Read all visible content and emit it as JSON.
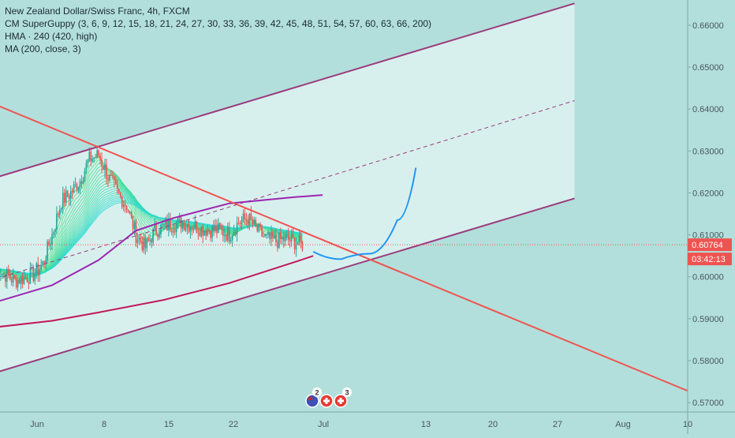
{
  "legend": {
    "title": "New Zealand Dollar/Swiss Franc, 4h, FXCM",
    "indicator_1": "CM SuperGuppy (3, 6, 9, 12, 15, 18, 21, 24, 27, 30, 33, 36, 39, 42, 45, 48, 51, 54, 57, 60, 63, 66, 200)",
    "indicator_2": "HMA · 240 (420, high)",
    "indicator_3": "MA (200, close, 3)"
  },
  "colors": {
    "background": "#b2dfdb",
    "channel_fill": "#d7f0ee",
    "channel_line": "#9b3b7d",
    "trendline": "#ef5350",
    "hma": "#9c27b0",
    "ma": "#c2185b",
    "projection": "#2196f3",
    "bull": "#26a69a",
    "bear": "#ef5350",
    "price_tag": "#ef5350"
  },
  "chart_data": {
    "type": "line",
    "symbol": "NZDCHF",
    "timeframe": "4h",
    "x_ticks": [
      "Jun",
      "8",
      "15",
      "22",
      "Jul",
      "13",
      "20",
      "27",
      "Aug",
      "10"
    ],
    "y_ticks": [
      "0.57000",
      "0.58000",
      "0.59000",
      "0.60000",
      "0.61000",
      "0.62000",
      "0.63000",
      "0.64000",
      "0.65000",
      "0.66000"
    ],
    "ylim": [
      0.5625,
      0.666
    ],
    "last_price": "0.60764",
    "countdown": "03:42:13",
    "candles_close_path": [
      [
        "2020-05-28",
        0.602
      ],
      [
        "2020-05-30",
        0.599
      ],
      [
        "2020-06-01",
        0.6005
      ],
      [
        "2020-06-02",
        0.603
      ],
      [
        "2020-06-03",
        0.61
      ],
      [
        "2020-06-04",
        0.618
      ],
      [
        "2020-06-05",
        0.62
      ],
      [
        "2020-06-06",
        0.623
      ],
      [
        "2020-06-07",
        0.628
      ],
      [
        "2020-06-08",
        0.629
      ],
      [
        "2020-06-09",
        0.624
      ],
      [
        "2020-06-10",
        0.62
      ],
      [
        "2020-06-11",
        0.617
      ],
      [
        "2020-06-12",
        0.61
      ],
      [
        "2020-06-13",
        0.607
      ],
      [
        "2020-06-14",
        0.611
      ],
      [
        "2020-06-15",
        0.612
      ],
      [
        "2020-06-17",
        0.613
      ],
      [
        "2020-06-19",
        0.6115
      ],
      [
        "2020-06-21",
        0.611
      ],
      [
        "2020-06-22",
        0.61
      ],
      [
        "2020-06-23",
        0.613
      ],
      [
        "2020-06-24",
        0.614
      ],
      [
        "2020-06-25",
        0.611
      ],
      [
        "2020-06-26",
        0.609
      ],
      [
        "2020-06-27",
        0.6085
      ],
      [
        "2020-06-28",
        0.609
      ],
      [
        "2020-06-30",
        0.6076
      ]
    ],
    "series": [
      {
        "name": "HMA · 240 (420, high)",
        "color": "#9c27b0",
        "points": [
          [
            "2020-05-28",
            0.594
          ],
          [
            "2020-06-03",
            0.598
          ],
          [
            "2020-06-08",
            0.604
          ],
          [
            "2020-06-12",
            0.611
          ],
          [
            "2020-06-16",
            0.614
          ],
          [
            "2020-06-22",
            0.6175
          ],
          [
            "2020-06-29",
            0.619
          ],
          [
            "2020-07-02",
            0.6195
          ]
        ]
      },
      {
        "name": "MA (200, close, 3)",
        "color": "#c2185b",
        "points": [
          [
            "2020-05-28",
            0.588
          ],
          [
            "2020-06-03",
            0.5895
          ],
          [
            "2020-06-08",
            0.5915
          ],
          [
            "2020-06-15",
            0.5945
          ],
          [
            "2020-06-22",
            0.5985
          ],
          [
            "2020-06-29",
            0.6035
          ],
          [
            "2020-07-01",
            0.605
          ]
        ]
      }
    ],
    "drawings": {
      "channel_upper": [
        [
          "2020-05-28",
          0.6237
        ],
        [
          "2020-07-29",
          0.6652
        ]
      ],
      "channel_mid": [
        [
          "2020-05-28",
          0.5995
        ],
        [
          "2020-07-29",
          0.642
        ]
      ],
      "channel_lower": [
        [
          "2020-05-28",
          0.5772
        ],
        [
          "2020-07-29",
          0.6187
        ]
      ],
      "trendline": [
        [
          "2020-05-28",
          0.641
        ],
        [
          "2020-08-11",
          0.572
        ]
      ],
      "projection": [
        [
          "2020-07-01",
          0.606
        ],
        [
          "2020-07-04",
          0.6042
        ],
        [
          "2020-07-07",
          0.6055
        ],
        [
          "2020-07-10",
          0.6135
        ],
        [
          "2020-07-12",
          0.626
        ]
      ]
    }
  },
  "events": [
    {
      "label": "2"
    },
    {
      "label": "3"
    }
  ]
}
